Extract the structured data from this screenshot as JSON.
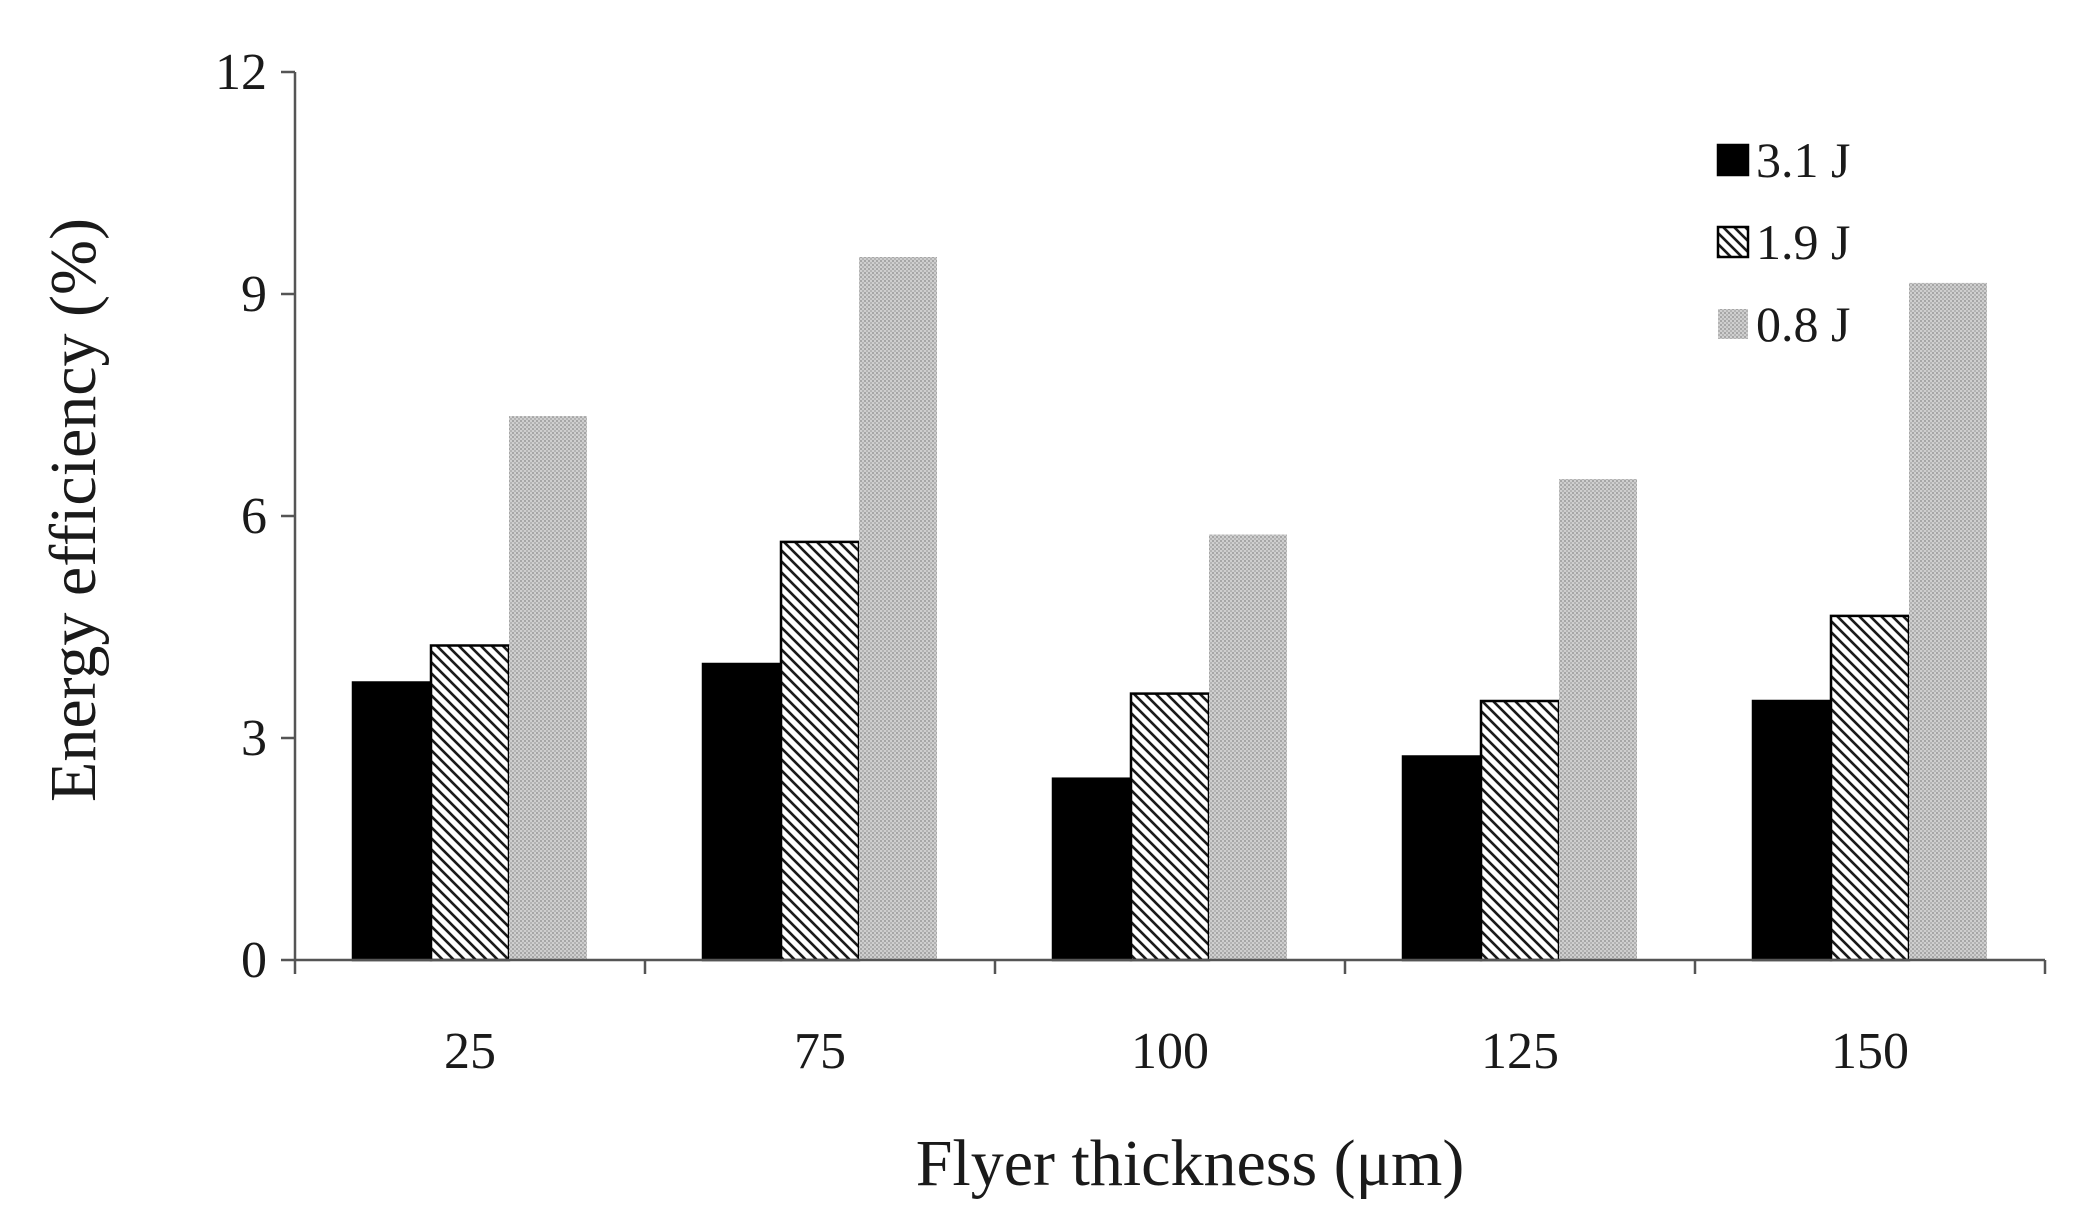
{
  "chart_data": {
    "type": "bar",
    "title": "",
    "xlabel": "Flyer thickness (μm)",
    "ylabel": "Energy efficiency (%)",
    "ylim": [
      0,
      12
    ],
    "yticks": [
      "0",
      "3",
      "6",
      "9",
      "12"
    ],
    "categories": [
      "25",
      "75",
      "100",
      "125",
      "150"
    ],
    "legend_position": "top-right",
    "grid": false,
    "series": [
      {
        "name": "3.1 J",
        "values": [
          3.75,
          4.0,
          2.45,
          2.75,
          3.5
        ],
        "fill": "solid-black",
        "color": "#000000"
      },
      {
        "name": "1.9 J",
        "values": [
          4.25,
          5.65,
          3.6,
          3.5,
          4.65
        ],
        "fill": "diagonal-hatch",
        "color": "#1a1a1a"
      },
      {
        "name": "0.8 J",
        "values": [
          7.35,
          9.5,
          5.75,
          6.5,
          9.15
        ],
        "fill": "light-gray-dots",
        "color": "#bdbdbd"
      }
    ]
  }
}
